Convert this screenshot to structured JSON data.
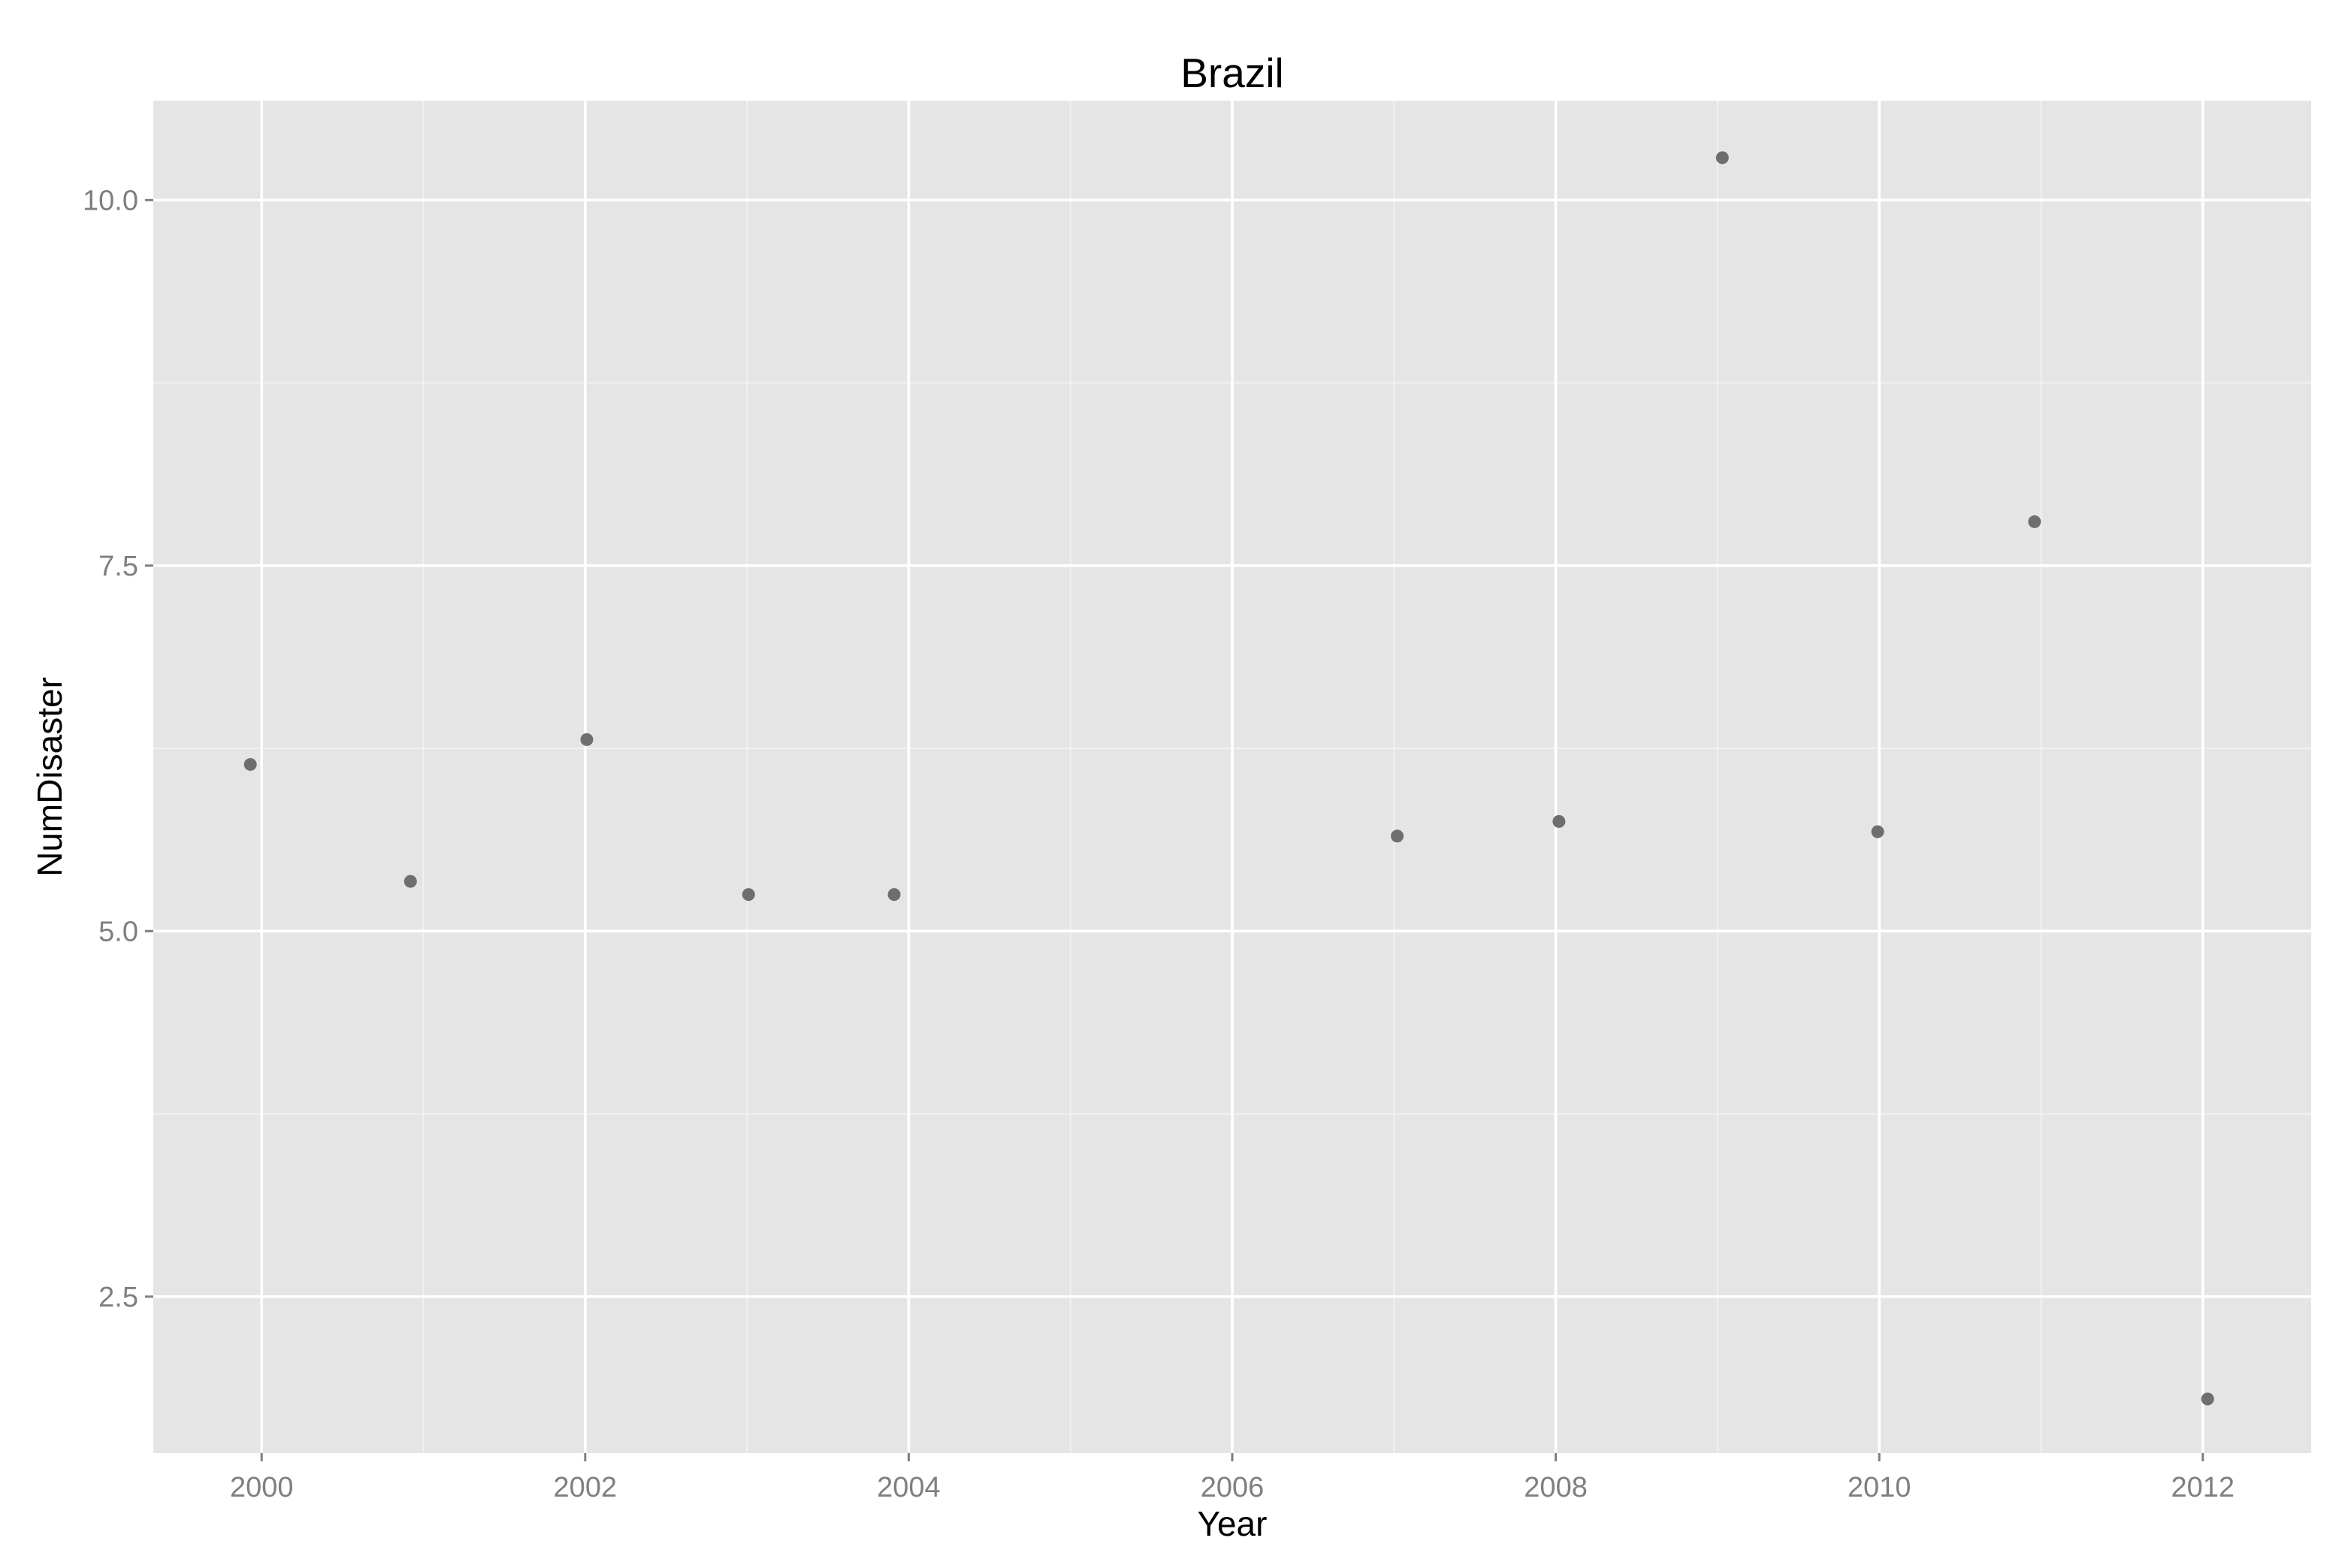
{
  "chart_data": {
    "type": "scatter",
    "title": "Brazil",
    "xlabel": "Year",
    "ylabel": "NumDisaster",
    "xlim": [
      1999.33,
      2012.67
    ],
    "ylim": [
      1.43,
      10.68
    ],
    "x_ticks": [
      2000,
      2002,
      2004,
      2006,
      2008,
      2010,
      2012
    ],
    "x_tick_labels": [
      "2000",
      "2002",
      "2004",
      "2006",
      "2008",
      "2010",
      "2012"
    ],
    "y_ticks": [
      2.5,
      5.0,
      7.5,
      10.0
    ],
    "y_tick_labels": [
      "2.5",
      "5.0",
      "7.5",
      "10.0"
    ],
    "grid": true,
    "legend": "none",
    "colors": {
      "panel": "#E5E5E5",
      "grid_major": "#FFFFFF",
      "grid_minor": "#F2F2F2",
      "point": "#6E6E6E",
      "tick": "#7F7F7F"
    },
    "series": [
      {
        "x": [
          1999.93,
          2000.92,
          2002.01,
          2003.01,
          2003.91,
          2007.02,
          2008.02,
          2009.03,
          2009.99,
          2010.96,
          2012.03
        ],
        "y": [
          6.14,
          5.34,
          6.31,
          5.25,
          5.25,
          5.65,
          5.75,
          10.29,
          5.68,
          7.8,
          1.8
        ]
      }
    ]
  }
}
